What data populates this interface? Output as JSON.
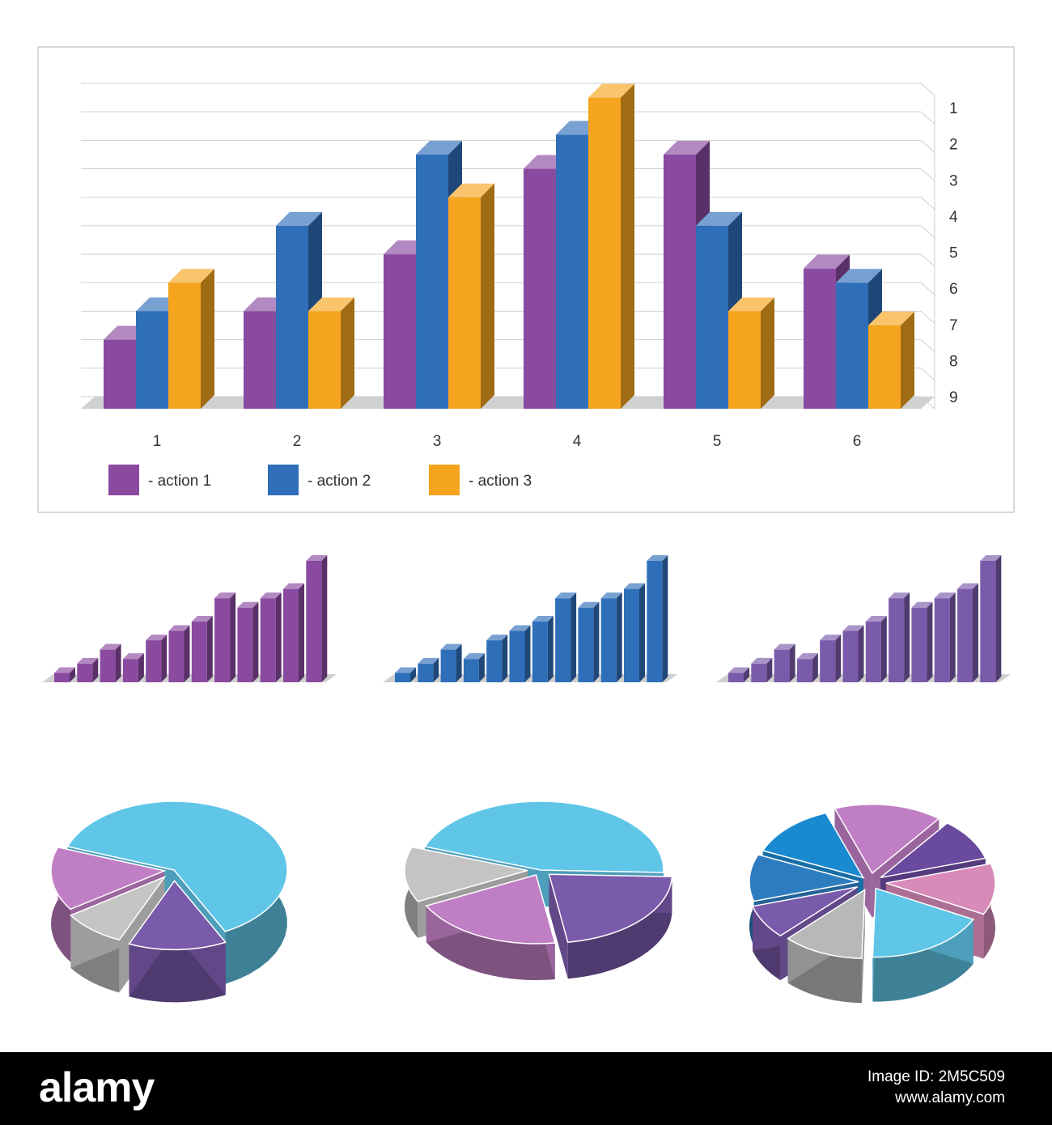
{
  "chart_data": [
    {
      "type": "bar",
      "categories": [
        "1",
        "2",
        "3",
        "4",
        "5",
        "6"
      ],
      "yticks": [
        "1",
        "2",
        "3",
        "4",
        "5",
        "6",
        "7",
        "8",
        "9"
      ],
      "ylim": [
        0,
        11
      ],
      "grid": true,
      "legend_position": "bottom-left",
      "series": [
        {
          "name": "- action 1",
          "color": "#8a4aa0",
          "values": [
            2,
            3,
            5,
            8,
            8.5,
            4.5
          ]
        },
        {
          "name": "- action 2",
          "color": "#2f6fba",
          "values": [
            3,
            6,
            8.5,
            9.2,
            6,
            4
          ]
        },
        {
          "name": "- action 3",
          "color": "#f5a41d",
          "values": [
            4,
            3,
            7,
            10.5,
            3,
            2.5
          ]
        }
      ]
    },
    {
      "type": "bar",
      "color": "#8a4aa0",
      "values": [
        1,
        2,
        3.5,
        2.5,
        4.5,
        5.5,
        6.5,
        9,
        8,
        9,
        10,
        13
      ]
    },
    {
      "type": "bar",
      "color": "#2f6fba",
      "values": [
        1,
        2,
        3.5,
        2.5,
        4.5,
        5.5,
        6.5,
        9,
        8,
        9,
        10,
        13
      ]
    },
    {
      "type": "bar",
      "color": "#7a5aaa",
      "values": [
        1,
        2,
        3.5,
        2.5,
        4.5,
        5.5,
        6.5,
        9,
        8,
        9,
        10,
        13
      ]
    },
    {
      "type": "pie",
      "values": [
        62,
        14,
        9,
        15
      ],
      "colors": [
        "#5fc6e8",
        "#7a5aaa",
        "#c4c4c4",
        "#c07ec4"
      ]
    },
    {
      "type": "pie",
      "values": [
        45,
        22,
        20,
        13
      ],
      "colors": [
        "#5fc6e8",
        "#7a5aaa",
        "#c07ec4",
        "#c4c4c4"
      ]
    },
    {
      "type": "pie",
      "values": [
        16,
        10,
        12,
        18,
        12,
        8,
        11,
        13
      ],
      "colors": [
        "#c07ec4",
        "#6a4a9e",
        "#d88ab8",
        "#5fc6e8",
        "#b8b8b8",
        "#7a5aaa",
        "#2d7cc0",
        "#1a8ad0"
      ]
    }
  ],
  "footer": {
    "brand": "alamy",
    "image_id": "Image ID: 2M5C509",
    "site": "www.alamy.com",
    "bg": "#000000"
  }
}
